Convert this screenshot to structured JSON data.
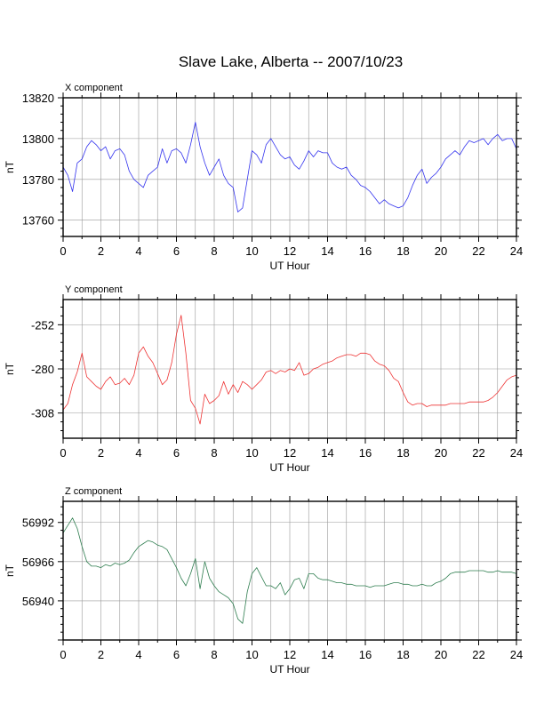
{
  "title": "Slave Lake, Alberta -- 2007/10/23",
  "chart_data": [
    {
      "type": "line",
      "panel_label": "X component",
      "xlabel": "UT Hour",
      "ylabel": "nT",
      "xlim": [
        0,
        24
      ],
      "ylim": [
        13752,
        13820
      ],
      "xticks": [
        0,
        2,
        4,
        6,
        8,
        10,
        12,
        14,
        16,
        18,
        20,
        22,
        24
      ],
      "yticks": [
        13760,
        13780,
        13800,
        13820
      ],
      "grid": true,
      "color": "#3333ee",
      "series": [
        {
          "x": [
            0,
            0.25,
            0.5,
            0.75,
            1,
            1.25,
            1.5,
            1.75,
            2,
            2.25,
            2.5,
            2.75,
            3,
            3.25,
            3.5,
            3.75,
            4,
            4.25,
            4.5,
            4.75,
            5,
            5.25,
            5.5,
            5.75,
            6,
            6.25,
            6.5,
            6.75,
            7,
            7.25,
            7.5,
            7.75,
            8,
            8.25,
            8.5,
            8.75,
            9,
            9.25,
            9.5,
            9.75,
            10,
            10.25,
            10.5,
            10.75,
            11,
            11.25,
            11.5,
            11.75,
            12,
            12.25,
            12.5,
            12.75,
            13,
            13.25,
            13.5,
            13.75,
            14,
            14.25,
            14.5,
            14.75,
            15,
            15.25,
            15.5,
            15.75,
            16,
            16.25,
            16.5,
            16.75,
            17,
            17.25,
            17.5,
            17.75,
            18,
            18.25,
            18.5,
            18.75,
            19,
            19.25,
            19.5,
            19.75,
            20,
            20.25,
            20.5,
            20.75,
            21,
            21.25,
            21.5,
            21.75,
            22,
            22.25,
            22.5,
            22.75,
            23,
            23.25,
            23.5,
            23.75,
            24
          ],
          "y": [
            13786,
            13782,
            13774,
            13788,
            13790,
            13796,
            13799,
            13797,
            13794,
            13796,
            13790,
            13794,
            13795,
            13792,
            13784,
            13780,
            13778,
            13776,
            13782,
            13784,
            13786,
            13795,
            13788,
            13794,
            13795,
            13793,
            13788,
            13797,
            13808,
            13796,
            13788,
            13782,
            13786,
            13790,
            13782,
            13778,
            13776,
            13764,
            13766,
            13780,
            13794,
            13792,
            13788,
            13797,
            13800,
            13796,
            13792,
            13790,
            13791,
            13787,
            13785,
            13789,
            13794,
            13791,
            13794,
            13793,
            13793,
            13788,
            13786,
            13785,
            13786,
            13782,
            13780,
            13777,
            13776,
            13774,
            13771,
            13768,
            13770,
            13768,
            13767,
            13766,
            13767,
            13771,
            13777,
            13782,
            13785,
            13778,
            13781,
            13783,
            13786,
            13790,
            13792,
            13794,
            13792,
            13796,
            13799,
            13798,
            13799,
            13800,
            13797,
            13800,
            13802,
            13799,
            13800,
            13800,
            13795
          ]
        }
      ]
    },
    {
      "type": "line",
      "panel_label": "Y component",
      "xlabel": "UT Hour",
      "ylabel": "nT",
      "xlim": [
        0,
        24
      ],
      "ylim": [
        -324,
        -236
      ],
      "xticks": [
        0,
        2,
        4,
        6,
        8,
        10,
        12,
        14,
        16,
        18,
        20,
        22,
        24
      ],
      "yticks": [
        -308,
        -280,
        -252
      ],
      "grid": true,
      "color": "#ee3333",
      "series": [
        {
          "x": [
            0,
            0.25,
            0.5,
            0.75,
            1,
            1.25,
            1.5,
            1.75,
            2,
            2.25,
            2.5,
            2.75,
            3,
            3.25,
            3.5,
            3.75,
            4,
            4.25,
            4.5,
            4.75,
            5,
            5.25,
            5.5,
            5.75,
            6,
            6.25,
            6.5,
            6.75,
            7,
            7.25,
            7.5,
            7.75,
            8,
            8.25,
            8.5,
            8.75,
            9,
            9.25,
            9.5,
            9.75,
            10,
            10.25,
            10.5,
            10.75,
            11,
            11.25,
            11.5,
            11.75,
            12,
            12.25,
            12.5,
            12.75,
            13,
            13.25,
            13.5,
            13.75,
            14,
            14.25,
            14.5,
            14.75,
            15,
            15.25,
            15.5,
            15.75,
            16,
            16.25,
            16.5,
            16.75,
            17,
            17.25,
            17.5,
            17.75,
            18,
            18.25,
            18.5,
            18.75,
            19,
            19.25,
            19.5,
            19.75,
            20,
            20.25,
            20.5,
            20.75,
            21,
            21.25,
            21.5,
            21.75,
            22,
            22.25,
            22.5,
            22.75,
            23,
            23.25,
            23.5,
            23.75,
            24
          ],
          "y": [
            -306,
            -302,
            -290,
            -282,
            -270,
            -285,
            -288,
            -291,
            -293,
            -288,
            -285,
            -290,
            -289,
            -286,
            -290,
            -284,
            -270,
            -266,
            -272,
            -276,
            -283,
            -290,
            -287,
            -276,
            -258,
            -246,
            -270,
            -300,
            -305,
            -315,
            -296,
            -302,
            -300,
            -297,
            -288,
            -296,
            -290,
            -295,
            -288,
            -290,
            -293,
            -290,
            -287,
            -282,
            -281,
            -283,
            -281,
            -282,
            -280,
            -281,
            -276,
            -284,
            -283,
            -280,
            -279,
            -277,
            -276,
            -275,
            -273,
            -272,
            -271,
            -271,
            -272,
            -270,
            -270,
            -271,
            -275,
            -277,
            -278,
            -281,
            -286,
            -288,
            -295,
            -301,
            -303,
            -302,
            -302,
            -304,
            -303,
            -303,
            -303,
            -303,
            -302,
            -302,
            -302,
            -302,
            -301,
            -301,
            -301,
            -301,
            -300,
            -298,
            -295,
            -291,
            -287,
            -285,
            -284
          ]
        }
      ]
    },
    {
      "type": "line",
      "panel_label": "Z component",
      "xlabel": "UT Hour",
      "ylabel": "nT",
      "xlim": [
        0,
        24
      ],
      "ylim": [
        56914,
        57006
      ],
      "xticks": [
        0,
        2,
        4,
        6,
        8,
        10,
        12,
        14,
        16,
        18,
        20,
        22,
        24
      ],
      "yticks": [
        56940,
        56966,
        56992
      ],
      "grid": true,
      "color": "#2e7d4f",
      "series": [
        {
          "x": [
            0,
            0.25,
            0.5,
            0.75,
            1,
            1.25,
            1.5,
            1.75,
            2,
            2.25,
            2.5,
            2.75,
            3,
            3.25,
            3.5,
            3.75,
            4,
            4.25,
            4.5,
            4.75,
            5,
            5.25,
            5.5,
            5.75,
            6,
            6.25,
            6.5,
            6.75,
            7,
            7.25,
            7.5,
            7.75,
            8,
            8.25,
            8.5,
            8.75,
            9,
            9.25,
            9.5,
            9.75,
            10,
            10.25,
            10.5,
            10.75,
            11,
            11.25,
            11.5,
            11.75,
            12,
            12.25,
            12.5,
            12.75,
            13,
            13.25,
            13.5,
            13.75,
            14,
            14.25,
            14.5,
            14.75,
            15,
            15.25,
            15.5,
            15.75,
            16,
            16.25,
            16.5,
            16.75,
            17,
            17.25,
            17.5,
            17.75,
            18,
            18.25,
            18.5,
            18.75,
            19,
            19.25,
            19.5,
            19.75,
            20,
            20.25,
            20.5,
            20.75,
            21,
            21.25,
            21.5,
            21.75,
            22,
            22.25,
            22.5,
            22.75,
            23,
            23.25,
            23.5,
            23.75,
            24
          ],
          "y": [
            56985,
            56990,
            56995,
            56988,
            56976,
            56966,
            56963,
            56963,
            56962,
            56964,
            56963,
            56965,
            56964,
            56965,
            56967,
            56972,
            56976,
            56978,
            56980,
            56979,
            56977,
            56976,
            56974,
            56968,
            56962,
            56955,
            56950,
            56958,
            56968,
            56948,
            56966,
            56955,
            56950,
            56946,
            56944,
            56942,
            56938,
            56928,
            56925,
            56946,
            56958,
            56962,
            56956,
            56950,
            56950,
            56948,
            56952,
            56944,
            56948,
            56954,
            56955,
            56948,
            56958,
            56958,
            56955,
            56954,
            56954,
            56953,
            56952,
            56952,
            56951,
            56951,
            56950,
            56950,
            56950,
            56949,
            56950,
            56950,
            56950,
            56951,
            56952,
            56952,
            56951,
            56951,
            56950,
            56950,
            56951,
            56950,
            56950,
            56952,
            56953,
            56955,
            56958,
            56959,
            56959,
            56959,
            56960,
            56960,
            56960,
            56960,
            56959,
            56959,
            56960,
            56959,
            56959,
            56959,
            56958
          ]
        }
      ]
    }
  ]
}
